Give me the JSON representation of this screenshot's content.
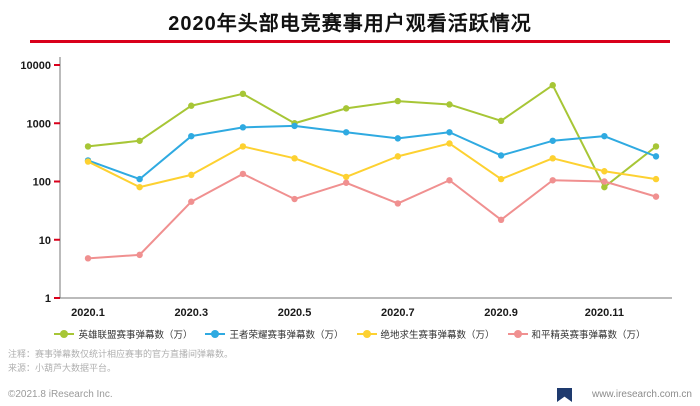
{
  "title": "2020年头部电竞赛事用户观看活跃情况",
  "notes": {
    "line1": "注释：赛事弹幕数仅统计相应赛事的官方直播间弹幕数。",
    "line2": "来源：小葫芦大数据平台。"
  },
  "footer": {
    "copyright": "©2021.8 iResearch Inc.",
    "website": "www.iresearch.com.cn"
  },
  "colors": {
    "title_underline": "#d9001b",
    "axis_tick": "#d9001b",
    "axis_line": "#777777",
    "ribbon": "#1e3a6e"
  },
  "chart_data": {
    "type": "line",
    "title": "2020年头部电竞赛事用户观看活跃情况",
    "y_scale": "log",
    "ylim": [
      1,
      10000
    ],
    "y_ticks": [
      1,
      10,
      100,
      1000,
      10000
    ],
    "grid": false,
    "legend_position": "bottom",
    "x": [
      "2020.1",
      "2020.2",
      "2020.3",
      "2020.4",
      "2020.5",
      "2020.6",
      "2020.7",
      "2020.8",
      "2020.9",
      "2020.10",
      "2020.11",
      "2020.12"
    ],
    "x_axis_labels_shown": [
      "2020.1",
      "2020.3",
      "2020.5",
      "2020.7",
      "2020.9",
      "2020.11"
    ],
    "series": [
      {
        "name": "英雄联盟赛事弹幕数（万）",
        "color": "#a7c636",
        "values": [
          400,
          500,
          2000,
          3200,
          1000,
          1800,
          2400,
          2100,
          1100,
          4500,
          80,
          400
        ]
      },
      {
        "name": "王者荣耀赛事弹幕数（万）",
        "color": "#2faae1",
        "values": [
          230,
          110,
          600,
          850,
          900,
          700,
          550,
          700,
          280,
          500,
          600,
          270
        ]
      },
      {
        "name": "绝地求生赛事弹幕数（万）",
        "color": "#fdd131",
        "values": [
          220,
          80,
          130,
          400,
          250,
          120,
          270,
          450,
          110,
          250,
          150,
          110
        ]
      },
      {
        "name": "和平精英赛事弹幕数（万）",
        "color": "#f09090",
        "values": [
          4.8,
          5.5,
          45,
          135,
          50,
          95,
          42,
          105,
          22,
          105,
          100,
          55
        ]
      }
    ]
  }
}
